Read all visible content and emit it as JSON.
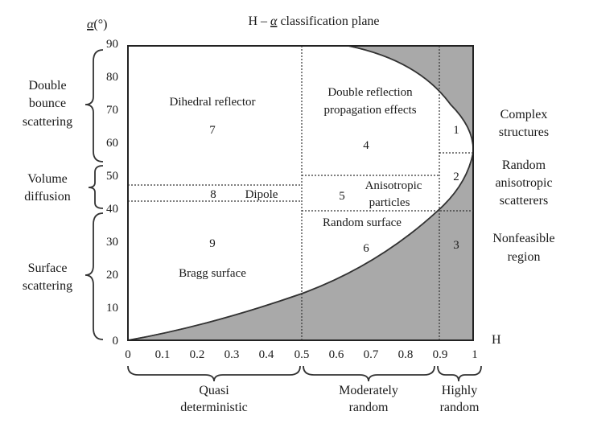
{
  "title_prefix": "H – ",
  "title_symbol": "α",
  "title_suffix": " classification plane",
  "y_axis": {
    "symbol": "α",
    "unit": "(°)",
    "ticks": [
      "0",
      "10",
      "20",
      "30",
      "40",
      "50",
      "60",
      "70",
      "80",
      "90"
    ]
  },
  "x_axis": {
    "label": "H",
    "ticks": [
      "0",
      "0.1",
      "0.2",
      "0.3",
      "0.4",
      "0.5",
      "0.6",
      "0.7",
      "0.8",
      "0.9",
      "1"
    ]
  },
  "zones": {
    "z7_name": "Dihedral reflector",
    "z7_num": "7",
    "z8_num": "8",
    "z8_name": "Dipole",
    "z9_num": "9",
    "z9_name": "Bragg surface",
    "z4_line1": "Double reflection",
    "z4_line2": "propagation effects",
    "z4_num": "4",
    "z5_num": "5",
    "z5_line1": "Anisotropic",
    "z5_line2": "particles",
    "z6_name": "Random surface",
    "z6_num": "6",
    "z1_num": "1",
    "z2_num": "2",
    "z3_num": "3"
  },
  "left_groups": {
    "double_line1": "Double",
    "double_line2": "bounce",
    "double_line3": "scattering",
    "volume_line1": "Volume",
    "volume_line2": "diffusion",
    "surface_line1": "Surface",
    "surface_line2": "scattering"
  },
  "right_labels": {
    "complex_line1": "Complex",
    "complex_line2": "structures",
    "random_line1": "Random",
    "random_line2": "anisotropic",
    "random_line3": "scatterers",
    "nonfeasible_line1": "Nonfeasible",
    "nonfeasible_line2": "region"
  },
  "bottom_groups": {
    "quasi_line1": "Quasi",
    "quasi_line2": "deterministic",
    "moderate_line1": "Moderately",
    "moderate_line2": "random",
    "highly_line1": "Highly",
    "highly_line2": "random"
  },
  "colors": {
    "nonfeasible_fill": "#a9a9a9",
    "line": "#333333"
  }
}
